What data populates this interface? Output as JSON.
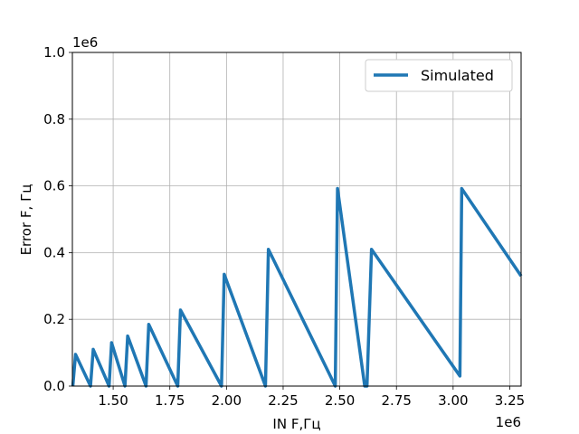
{
  "chart_data": {
    "type": "line",
    "title": "",
    "xlabel": "IN F,Гц",
    "ylabel": "Error F, Гц",
    "x_offset_label": "1e6",
    "y_offset_label": "1e6",
    "xlim": [
      1.32,
      3.3
    ],
    "ylim": [
      0,
      1.0
    ],
    "x_scale": 1000000,
    "y_scale": 1000000,
    "xticks": [
      1.5,
      1.75,
      2.0,
      2.25,
      2.5,
      2.75,
      3.0,
      3.25
    ],
    "xtick_labels": [
      "1.50",
      "1.75",
      "2.00",
      "2.25",
      "2.50",
      "2.75",
      "3.00",
      "3.25"
    ],
    "yticks": [
      0.0,
      0.2,
      0.4,
      0.6,
      0.8,
      1.0
    ],
    "ytick_labels": [
      "0.0",
      "0.2",
      "0.4",
      "0.6",
      "0.8",
      "1.0"
    ],
    "grid": true,
    "legend_position": "top-right",
    "series": [
      {
        "name": "Simulated",
        "color": "#1f77b4",
        "points": [
          [
            1.322,
            0.0
          ],
          [
            1.334,
            0.095
          ],
          [
            1.4,
            0.0
          ],
          [
            1.412,
            0.11
          ],
          [
            1.482,
            0.0
          ],
          [
            1.493,
            0.13
          ],
          [
            1.552,
            0.0
          ],
          [
            1.564,
            0.15
          ],
          [
            1.645,
            0.0
          ],
          [
            1.657,
            0.185
          ],
          [
            1.785,
            0.0
          ],
          [
            1.797,
            0.228
          ],
          [
            1.978,
            0.0
          ],
          [
            1.99,
            0.335
          ],
          [
            2.172,
            0.0
          ],
          [
            2.185,
            0.41
          ],
          [
            2.48,
            0.0
          ],
          [
            2.49,
            0.592
          ],
          [
            2.61,
            0.0
          ],
          [
            2.62,
            0.0
          ],
          [
            2.64,
            0.41
          ],
          [
            3.03,
            0.03
          ],
          [
            3.038,
            0.592
          ],
          [
            3.3,
            0.33
          ]
        ]
      }
    ]
  }
}
